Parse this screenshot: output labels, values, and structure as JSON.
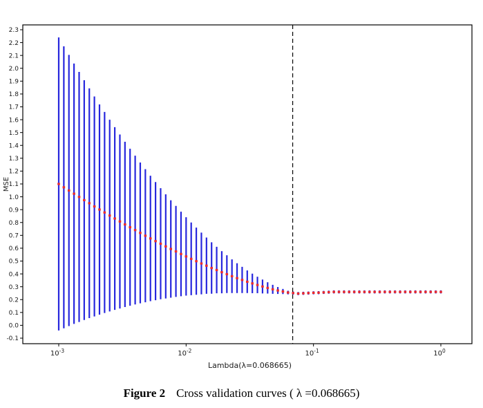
{
  "figure": {
    "caption_label": "Figure 2",
    "caption_text": "Cross validation curves ( λ =0.068665)"
  },
  "chart_data": {
    "type": "scatter",
    "subtype": "errorbar",
    "title": "",
    "xlabel": "Lambda(λ=0.068665)",
    "ylabel": "MSE",
    "x_scale": "log10",
    "xlim_log10": [
      -3.28,
      0.25
    ],
    "ylim": [
      -0.175,
      2.35
    ],
    "grid": false,
    "legend": "none",
    "vline_lambda": 0.068665,
    "vline_log10": -1.1632,
    "y_ticks": [
      -0.1,
      0,
      0.1,
      0.2,
      0.3,
      0.4,
      0.5,
      0.6,
      0.7,
      0.8,
      0.9,
      1,
      1.1,
      1.2,
      1.3,
      1.4,
      1.5,
      1.6,
      1.7,
      1.8,
      1.9,
      2,
      2.1,
      2.2,
      2.3
    ],
    "x_ticks": [
      {
        "base": "10",
        "exp": "-3",
        "log10": -3
      },
      {
        "base": "10",
        "exp": "-2",
        "log10": -2
      },
      {
        "base": "10",
        "exp": "-1",
        "log10": -1
      },
      {
        "base": "10",
        "exp": "0",
        "log10": 0
      }
    ],
    "x_log10": [
      -3,
      -2.96,
      -2.92,
      -2.88,
      -2.84,
      -2.8,
      -2.76,
      -2.72,
      -2.68,
      -2.64,
      -2.6,
      -2.56,
      -2.52,
      -2.48,
      -2.44,
      -2.4,
      -2.36,
      -2.32,
      -2.28,
      -2.24,
      -2.2,
      -2.16,
      -2.12,
      -2.08,
      -2.04,
      -2,
      -1.96,
      -1.92,
      -1.88,
      -1.84,
      -1.8,
      -1.76,
      -1.72,
      -1.68,
      -1.64,
      -1.6,
      -1.56,
      -1.52,
      -1.48,
      -1.44,
      -1.4,
      -1.36,
      -1.32,
      -1.28,
      -1.24,
      -1.2,
      -1.16,
      -1.12,
      -1.08,
      -1.04,
      -1,
      -0.96,
      -0.92,
      -0.88,
      -0.84,
      -0.8,
      -0.76,
      -0.72,
      -0.68,
      -0.64,
      -0.6,
      -0.56,
      -0.52,
      -0.48,
      -0.44,
      -0.4,
      -0.36,
      -0.32,
      -0.28,
      -0.24,
      -0.2,
      -0.16,
      -0.12,
      -0.08,
      -0.04,
      0
    ],
    "mse": [
      1.1,
      1.074,
      1.049,
      1.024,
      0.999,
      0.974,
      0.95,
      0.925,
      0.901,
      0.878,
      0.854,
      0.831,
      0.808,
      0.785,
      0.763,
      0.741,
      0.719,
      0.697,
      0.676,
      0.655,
      0.635,
      0.614,
      0.594,
      0.575,
      0.555,
      0.536,
      0.517,
      0.499,
      0.481,
      0.464,
      0.446,
      0.43,
      0.413,
      0.398,
      0.382,
      0.367,
      0.353,
      0.339,
      0.326,
      0.314,
      0.302,
      0.291,
      0.28,
      0.271,
      0.263,
      0.255,
      0.251,
      0.247,
      0.249,
      0.251,
      0.253,
      0.254,
      0.256,
      0.258,
      0.26,
      0.26,
      0.26,
      0.26,
      0.26,
      0.26,
      0.26,
      0.26,
      0.26,
      0.26,
      0.26,
      0.26,
      0.26,
      0.26,
      0.26,
      0.26,
      0.26,
      0.26,
      0.26,
      0.26,
      0.26,
      0.26
    ],
    "err": [
      1.14,
      1.097,
      1.055,
      1.013,
      0.973,
      0.933,
      0.894,
      0.856,
      0.818,
      0.782,
      0.746,
      0.711,
      0.677,
      0.643,
      0.611,
      0.579,
      0.548,
      0.518,
      0.488,
      0.46,
      0.432,
      0.405,
      0.379,
      0.354,
      0.329,
      0.305,
      0.283,
      0.261,
      0.24,
      0.219,
      0.2,
      0.181,
      0.164,
      0.147,
      0.131,
      0.116,
      0.102,
      0.088,
      0.076,
      0.064,
      0.054,
      0.044,
      0.035,
      0.027,
      0.02,
      0.014,
      0.012,
      0.012,
      0.012,
      0.012,
      0.012,
      0.012,
      0.012,
      0.012,
      0.012,
      0.012,
      0.012,
      0.012,
      0.012,
      0.012,
      0.012,
      0.012,
      0.012,
      0.012,
      0.012,
      0.012,
      0.012,
      0.012,
      0.012,
      0.012,
      0.012,
      0.012,
      0.012,
      0.012,
      0.012,
      0.012
    ],
    "colors": {
      "errorbar": "#2626dd",
      "point": "#ee2c2c",
      "vline": "#000000",
      "box": "#000000"
    }
  }
}
